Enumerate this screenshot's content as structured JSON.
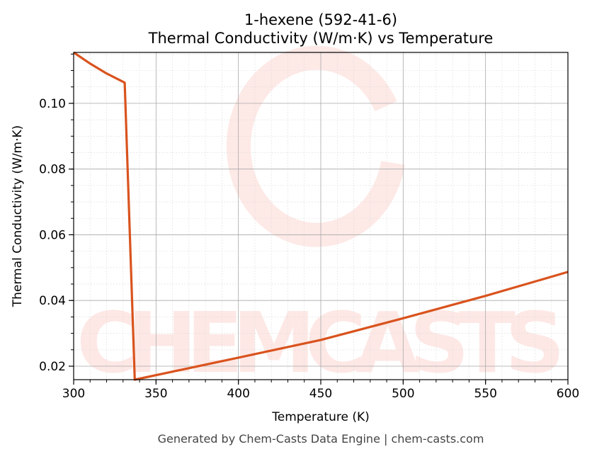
{
  "chart_data": {
    "type": "line",
    "title": "1-hexene (592-41-6)",
    "subtitle": "Thermal Conductivity (W/m·K) vs Temperature",
    "xlabel": "Temperature (K)",
    "ylabel": "Thermal Conductivity (W/m·K)",
    "xlim": [
      300,
      600
    ],
    "ylim": [
      0.0159,
      0.1155
    ],
    "xticks": [
      300,
      350,
      400,
      450,
      500,
      550,
      600
    ],
    "xtick_labels": [
      "300",
      "350",
      "400",
      "450",
      "500",
      "550",
      "600"
    ],
    "yticks": [
      0.02,
      0.04,
      0.06,
      0.08,
      0.1
    ],
    "ytick_labels": [
      "0.02",
      "0.04",
      "0.06",
      "0.08",
      "0.10"
    ],
    "grid": true,
    "series": [
      {
        "color": "#d9531e",
        "x": [
          300,
          310,
          320,
          331,
          337.1,
          400,
          450,
          500,
          550,
          600
        ],
        "y": [
          0.1155,
          0.1121,
          0.1091,
          0.1063,
          0.0159,
          0.0226,
          0.028,
          0.0346,
          0.0414,
          0.0487
        ]
      }
    ]
  },
  "watermark": "CHEMCASTS",
  "footer": "Generated by Chem-Casts Data Engine | chem-casts.com"
}
